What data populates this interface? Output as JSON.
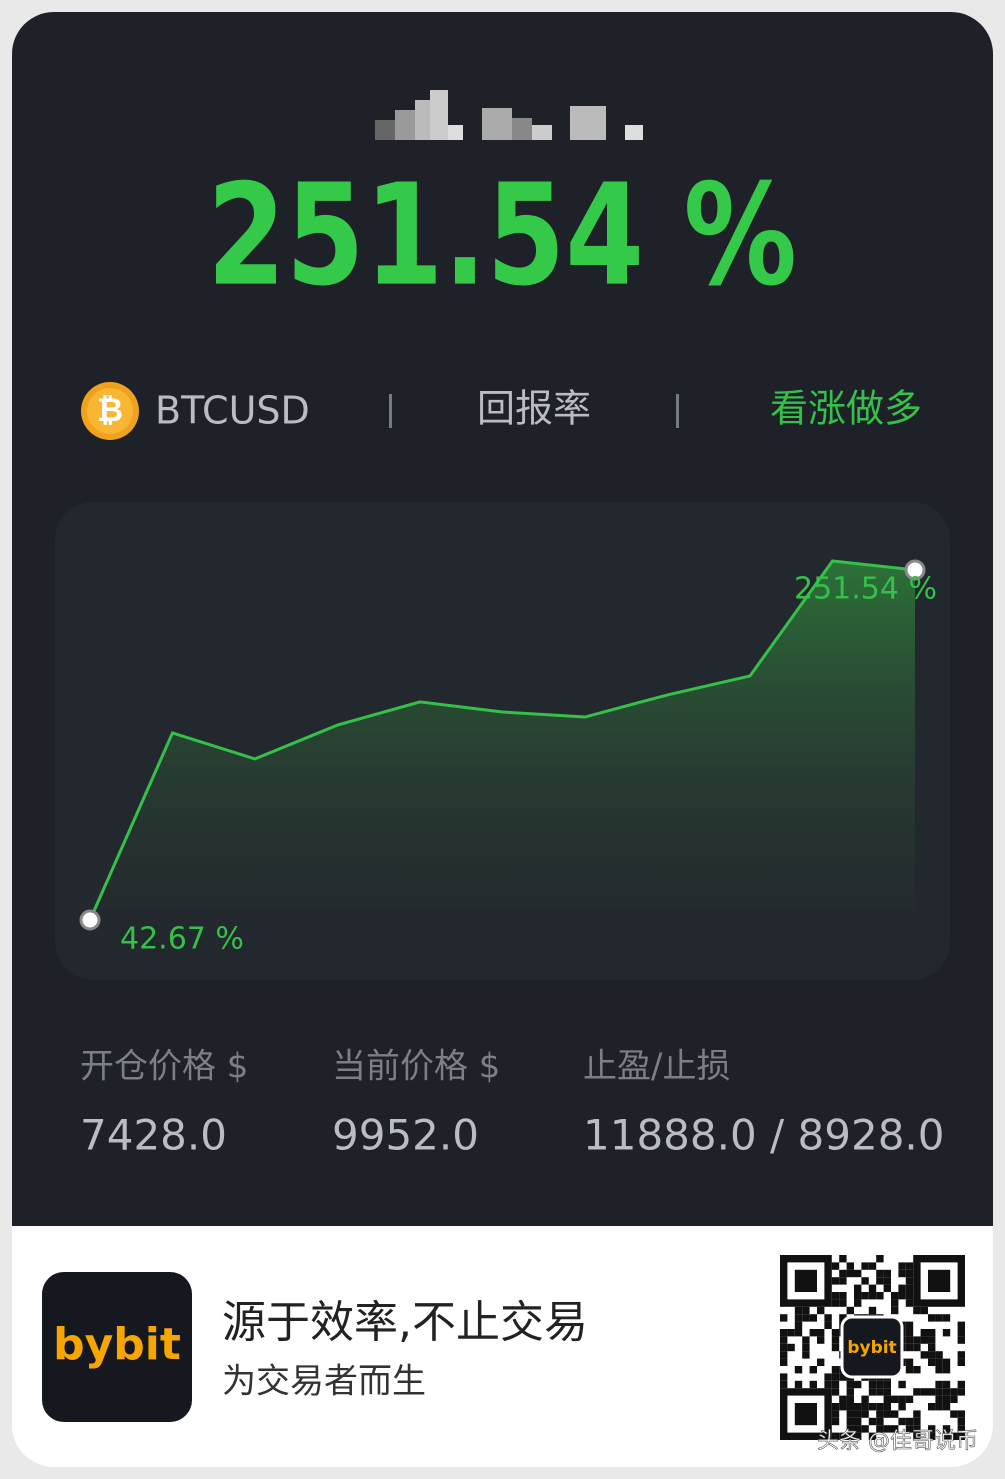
{
  "header": {
    "user": null
  },
  "asset": {
    "icon": "₿",
    "symbol": "BTCUSD",
    "metric": "回报率",
    "direction": "看涨做多"
  },
  "chart_data": {
    "type": "line",
    "color": "#35c04a",
    "values": [
      42.67,
      154.3,
      138.8,
      159.0,
      172.8,
      166.8,
      163.8,
      177.0,
      188.3,
      256.9,
      251.54
    ],
    "value_labels": [
      "42.67 %",
      null,
      null,
      null,
      null,
      null,
      null,
      null,
      null,
      null,
      "251.54 %"
    ]
  },
  "stats": [
    {
      "label": "开仓价格 $",
      "value": "7428.0"
    },
    {
      "label": "当前价格 $",
      "value": "9952.0"
    },
    {
      "label": "止盈/止损",
      "value": "11888.0 / 8928.0"
    }
  ],
  "footer": {
    "logo": "bybit",
    "slogan": "源于效率,不止交易",
    "tagline": "为交易者而生",
    "watermark": "头条 @佳哥说币"
  }
}
